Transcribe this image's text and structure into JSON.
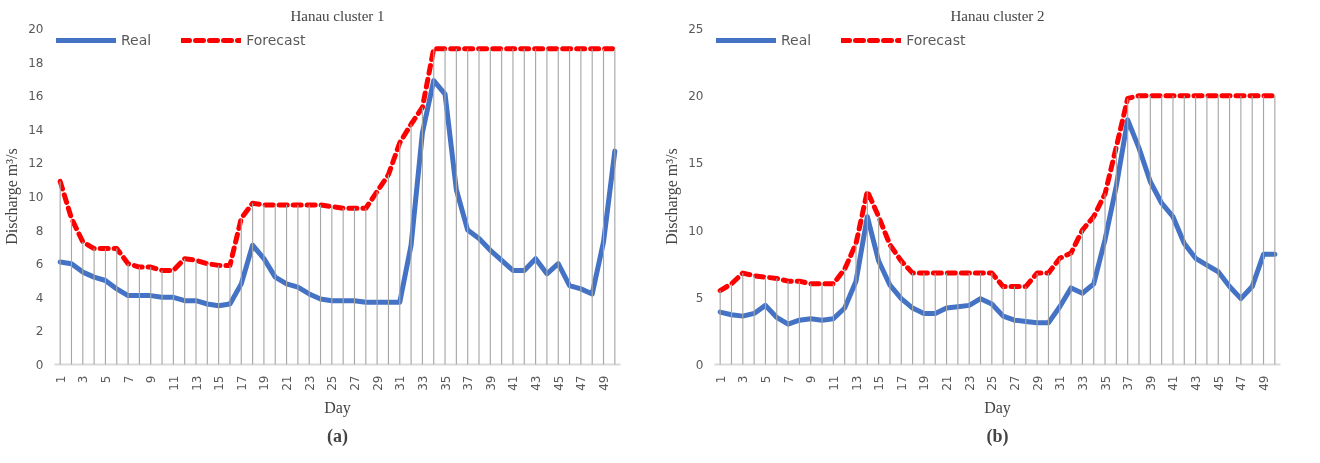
{
  "chart_data": [
    {
      "type": "line",
      "title": "Hanau cluster 1",
      "xlabel": "Day",
      "ylabel": "Discharge m³/s",
      "annotations": [
        "(a)"
      ],
      "categories": [
        "1",
        null,
        "3",
        null,
        "5",
        null,
        "7",
        null,
        "9",
        null,
        "11",
        null,
        "13",
        null,
        "15",
        null,
        "17",
        null,
        "19",
        null,
        "21",
        null,
        "23",
        null,
        "25",
        null,
        "27",
        null,
        "29",
        null,
        "31",
        null,
        "33",
        null,
        "35",
        null,
        "37",
        null,
        "39",
        null,
        "41",
        null,
        "43",
        null,
        "45",
        null,
        "47",
        null,
        "49",
        null
      ],
      "ylim": [
        0,
        20
      ],
      "yticks": [
        0,
        2,
        4,
        6,
        8,
        10,
        12,
        14,
        16,
        18,
        20
      ],
      "grid": false,
      "legend": "top left",
      "marker": "none",
      "series": [
        {
          "type": "bar",
          "color": "#a6a6a6",
          "values": [
            10.9,
            8.7,
            7.3,
            6.9,
            6.9,
            6.9,
            6.0,
            5.8,
            5.8,
            5.6,
            5.6,
            6.3,
            6.2,
            6.0,
            5.9,
            5.9,
            8.7,
            9.6,
            9.5,
            9.5,
            9.5,
            9.5,
            9.5,
            9.5,
            9.4,
            9.3,
            9.3,
            9.3,
            10.3,
            11.3,
            13.2,
            14.3,
            15.3,
            18.8,
            18.8,
            18.8,
            18.8,
            18.8,
            18.8,
            18.8,
            18.8,
            18.8,
            18.8,
            18.8,
            18.8,
            18.8,
            18.8,
            18.8,
            18.8,
            18.8
          ]
        },
        {
          "name": "Real",
          "color": "#4472c4",
          "line_style": "solid",
          "values": [
            6.1,
            6.0,
            5.5,
            5.2,
            5.0,
            4.5,
            4.1,
            4.1,
            4.1,
            4.0,
            4.0,
            3.8,
            3.8,
            3.6,
            3.5,
            3.6,
            4.8,
            7.1,
            6.3,
            5.2,
            4.8,
            4.6,
            4.2,
            3.9,
            3.8,
            3.8,
            3.8,
            3.7,
            3.7,
            3.7,
            3.7,
            7.1,
            13.8,
            16.9,
            16.1,
            10.4,
            8.0,
            7.5,
            6.8,
            6.2,
            5.6,
            5.6,
            6.3,
            5.4,
            6.0,
            4.7,
            4.5,
            4.2,
            7.3,
            12.7
          ]
        },
        {
          "name": "Forecast",
          "color": "#ff0000",
          "line_style": "dashed",
          "values": [
            10.9,
            8.7,
            7.3,
            6.9,
            6.9,
            6.9,
            6.0,
            5.8,
            5.8,
            5.6,
            5.6,
            6.3,
            6.2,
            6.0,
            5.9,
            5.9,
            8.7,
            9.6,
            9.5,
            9.5,
            9.5,
            9.5,
            9.5,
            9.5,
            9.4,
            9.3,
            9.3,
            9.3,
            10.3,
            11.3,
            13.2,
            14.3,
            15.3,
            18.8,
            18.8,
            18.8,
            18.8,
            18.8,
            18.8,
            18.8,
            18.8,
            18.8,
            18.8,
            18.8,
            18.8,
            18.8,
            18.8,
            18.8,
            18.8,
            18.8
          ]
        }
      ]
    },
    {
      "type": "line",
      "title": "Hanau cluster 2",
      "xlabel": "Day",
      "ylabel": "Discharge m³/s",
      "annotations": [
        "(b)"
      ],
      "categories": [
        "1",
        null,
        "3",
        null,
        "5",
        null,
        "7",
        null,
        "9",
        null,
        "11",
        null,
        "13",
        null,
        "15",
        null,
        "17",
        null,
        "19",
        null,
        "21",
        null,
        "23",
        null,
        "25",
        null,
        "27",
        null,
        "29",
        null,
        "31",
        null,
        "33",
        null,
        "35",
        null,
        "37",
        null,
        "39",
        null,
        "41",
        null,
        "43",
        null,
        "45",
        null,
        "47",
        null,
        "49",
        null
      ],
      "ylim": [
        0,
        25
      ],
      "yticks": [
        0,
        5,
        10,
        15,
        20,
        25
      ],
      "grid": false,
      "legend": "top left",
      "marker": "none",
      "series": [
        {
          "type": "bar",
          "color": "#a6a6a6",
          "values": [
            5.5,
            6.0,
            6.8,
            6.6,
            6.5,
            6.4,
            6.2,
            6.2,
            6.0,
            6.0,
            6.0,
            7.1,
            9.0,
            12.9,
            11.0,
            8.9,
            7.7,
            6.8,
            6.8,
            6.8,
            6.8,
            6.8,
            6.8,
            6.8,
            6.8,
            5.8,
            5.8,
            5.8,
            6.8,
            6.8,
            7.9,
            8.3,
            10.0,
            11.0,
            12.7,
            16.2,
            19.8,
            20,
            20,
            20,
            20,
            20,
            20,
            20,
            20,
            20,
            20,
            20,
            20,
            20
          ]
        },
        {
          "name": "Real",
          "color": "#4472c4",
          "line_style": "solid",
          "values": [
            3.9,
            3.7,
            3.6,
            3.8,
            4.4,
            3.5,
            3.0,
            3.3,
            3.4,
            3.3,
            3.4,
            4.2,
            6.2,
            11.0,
            7.7,
            5.9,
            4.9,
            4.2,
            3.8,
            3.8,
            4.2,
            4.3,
            4.4,
            4.9,
            4.5,
            3.6,
            3.3,
            3.2,
            3.1,
            3.1,
            4.3,
            5.7,
            5.3,
            6.0,
            9.3,
            13.3,
            18.2,
            16.1,
            13.6,
            12.0,
            11.0,
            9.0,
            7.9,
            7.4,
            6.9,
            5.8,
            4.9,
            5.8,
            8.2,
            8.2
          ]
        },
        {
          "name": "Forecast",
          "color": "#ff0000",
          "line_style": "dashed",
          "values": [
            5.5,
            6.0,
            6.8,
            6.6,
            6.5,
            6.4,
            6.2,
            6.2,
            6.0,
            6.0,
            6.0,
            7.1,
            9.0,
            12.9,
            11.0,
            8.9,
            7.7,
            6.8,
            6.8,
            6.8,
            6.8,
            6.8,
            6.8,
            6.8,
            6.8,
            5.8,
            5.8,
            5.8,
            6.8,
            6.8,
            7.9,
            8.3,
            10.0,
            11.0,
            12.7,
            16.2,
            19.8,
            20,
            20,
            20,
            20,
            20,
            20,
            20,
            20,
            20,
            20,
            20,
            20,
            20
          ]
        }
      ]
    }
  ]
}
